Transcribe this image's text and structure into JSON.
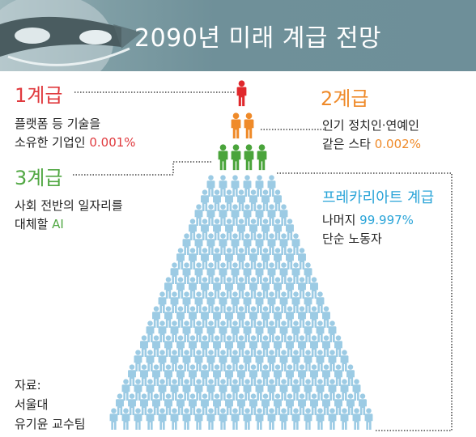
{
  "title": "2090년 미래 계급 전망",
  "tiers": {
    "tier1": {
      "title": "1계급",
      "line1": "플랫폼 등 기술을",
      "line2_prefix": "소유한 기업인 ",
      "percent": "0.001%",
      "color": "#e03a3e"
    },
    "tier2": {
      "title": "2계급",
      "line1": "인기 정치인·연예인",
      "line2_prefix": "같은 스타 ",
      "percent": "0.002%",
      "color": "#ef8a29"
    },
    "tier3": {
      "title": "3계급",
      "line1": "사회 전반의 일자리를",
      "line2_prefix": "대체할 ",
      "highlight": "AI",
      "color": "#52a844"
    },
    "precariat": {
      "title": "프레카리아트 계급",
      "line1_prefix": "나머지 ",
      "percent": "99.997%",
      "line2": "단순 노동자",
      "color": "#2aa4d8"
    }
  },
  "source": {
    "label": "자료:",
    "line1": "서울대",
    "line2": "유기윤 교수팀"
  },
  "icons": {
    "person": "person-icon"
  },
  "colors": {
    "blue_person": "#9ccbe4",
    "header_bg": "#6f9099"
  }
}
